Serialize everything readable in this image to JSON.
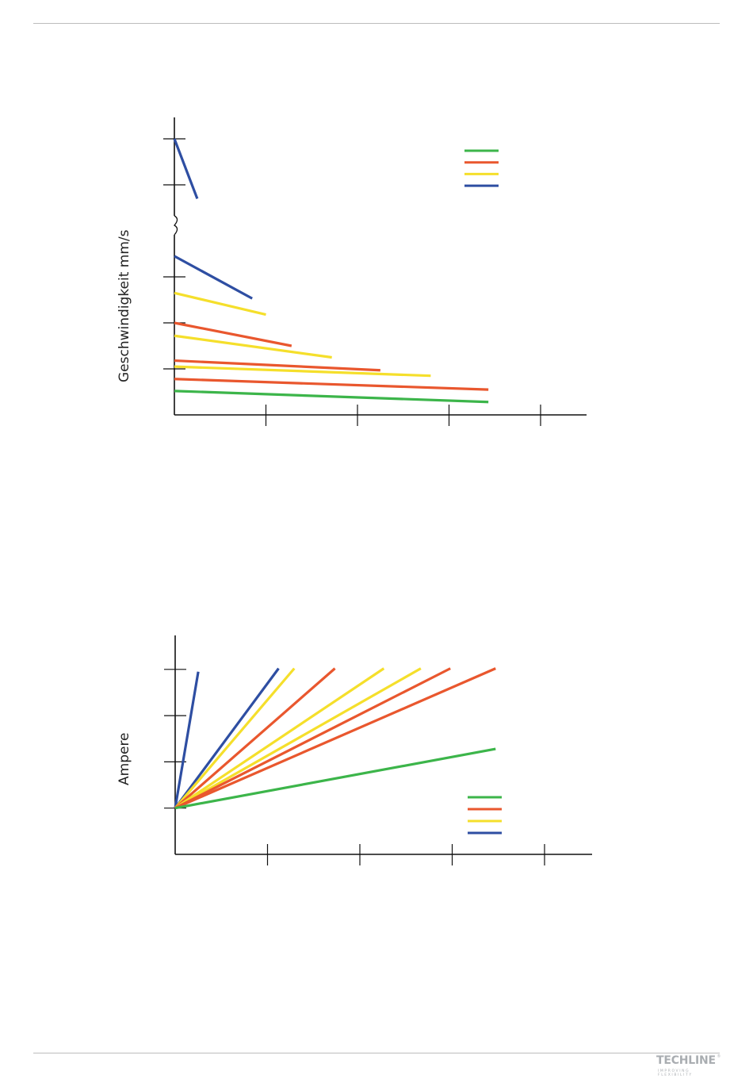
{
  "footer": {
    "logo_text": "TECHLINE",
    "logo_registered": "®",
    "logo_tagline": "IMPROVING FLEXIBILITY"
  },
  "chart_data": [
    {
      "type": "line",
      "ylabel": "Geschwindigkeit mm/s",
      "xlabel": "",
      "x_ticks": 5,
      "y_ticks": 5,
      "y_axis_break": true,
      "grid": false,
      "legend": {
        "placement": "top-right",
        "entries": [
          {
            "color": "#3cb54a"
          },
          {
            "color": "#e9572e"
          },
          {
            "color": "#f5df2b"
          },
          {
            "color": "#2e4ea2"
          }
        ]
      },
      "series": [
        {
          "color": "#2e4ea2",
          "points": [
            [
              0,
              6.0
            ],
            [
              0.25,
              4.7
            ]
          ]
        },
        {
          "color": "#2e4ea2",
          "points": [
            [
              0,
              3.45
            ],
            [
              0.85,
              2.53
            ]
          ]
        },
        {
          "color": "#f5df2b",
          "points": [
            [
              0,
              2.65
            ],
            [
              1.0,
              2.18
            ]
          ]
        },
        {
          "color": "#e9572e",
          "points": [
            [
              0,
              2.0
            ],
            [
              1.28,
              1.5
            ]
          ]
        },
        {
          "color": "#f5df2b",
          "points": [
            [
              0,
              1.72
            ],
            [
              1.72,
              1.25
            ]
          ]
        },
        {
          "color": "#e9572e",
          "points": [
            [
              0,
              1.18
            ],
            [
              2.25,
              0.97
            ]
          ]
        },
        {
          "color": "#f5df2b",
          "points": [
            [
              0,
              1.05
            ],
            [
              2.8,
              0.85
            ]
          ]
        },
        {
          "color": "#e9572e",
          "points": [
            [
              0,
              0.78
            ],
            [
              3.43,
              0.55
            ]
          ]
        },
        {
          "color": "#3cb54a",
          "points": [
            [
              0,
              0.52
            ],
            [
              3.43,
              0.28
            ]
          ]
        }
      ]
    },
    {
      "type": "line",
      "ylabel": "Ampere",
      "xlabel": "",
      "x_ticks": 5,
      "y_ticks": 4,
      "grid": false,
      "legend": {
        "placement": "bottom-right",
        "entries": [
          {
            "color": "#3cb54a"
          },
          {
            "color": "#e9572e"
          },
          {
            "color": "#f5df2b"
          },
          {
            "color": "#2e4ea2"
          }
        ]
      },
      "series": [
        {
          "color": "#2e4ea2",
          "points": [
            [
              0,
              1.0
            ],
            [
              0.25,
              3.95
            ]
          ]
        },
        {
          "color": "#2e4ea2",
          "points": [
            [
              0,
              1.0
            ],
            [
              1.12,
              4.02
            ]
          ]
        },
        {
          "color": "#f5df2b",
          "points": [
            [
              0,
              1.0
            ],
            [
              1.29,
              4.02
            ]
          ]
        },
        {
          "color": "#e9572e",
          "points": [
            [
              0,
              1.0
            ],
            [
              1.73,
              4.02
            ]
          ]
        },
        {
          "color": "#f5df2b",
          "points": [
            [
              0,
              1.0
            ],
            [
              2.26,
              4.02
            ]
          ]
        },
        {
          "color": "#f5df2b",
          "points": [
            [
              0,
              1.0
            ],
            [
              2.66,
              4.02
            ]
          ]
        },
        {
          "color": "#e9572e",
          "points": [
            [
              0,
              1.0
            ],
            [
              2.98,
              4.02
            ]
          ]
        },
        {
          "color": "#e9572e",
          "points": [
            [
              0,
              1.0
            ],
            [
              3.47,
              4.02
            ]
          ]
        },
        {
          "color": "#3cb54a",
          "points": [
            [
              0,
              1.0
            ],
            [
              3.47,
              2.28
            ]
          ]
        }
      ]
    }
  ]
}
